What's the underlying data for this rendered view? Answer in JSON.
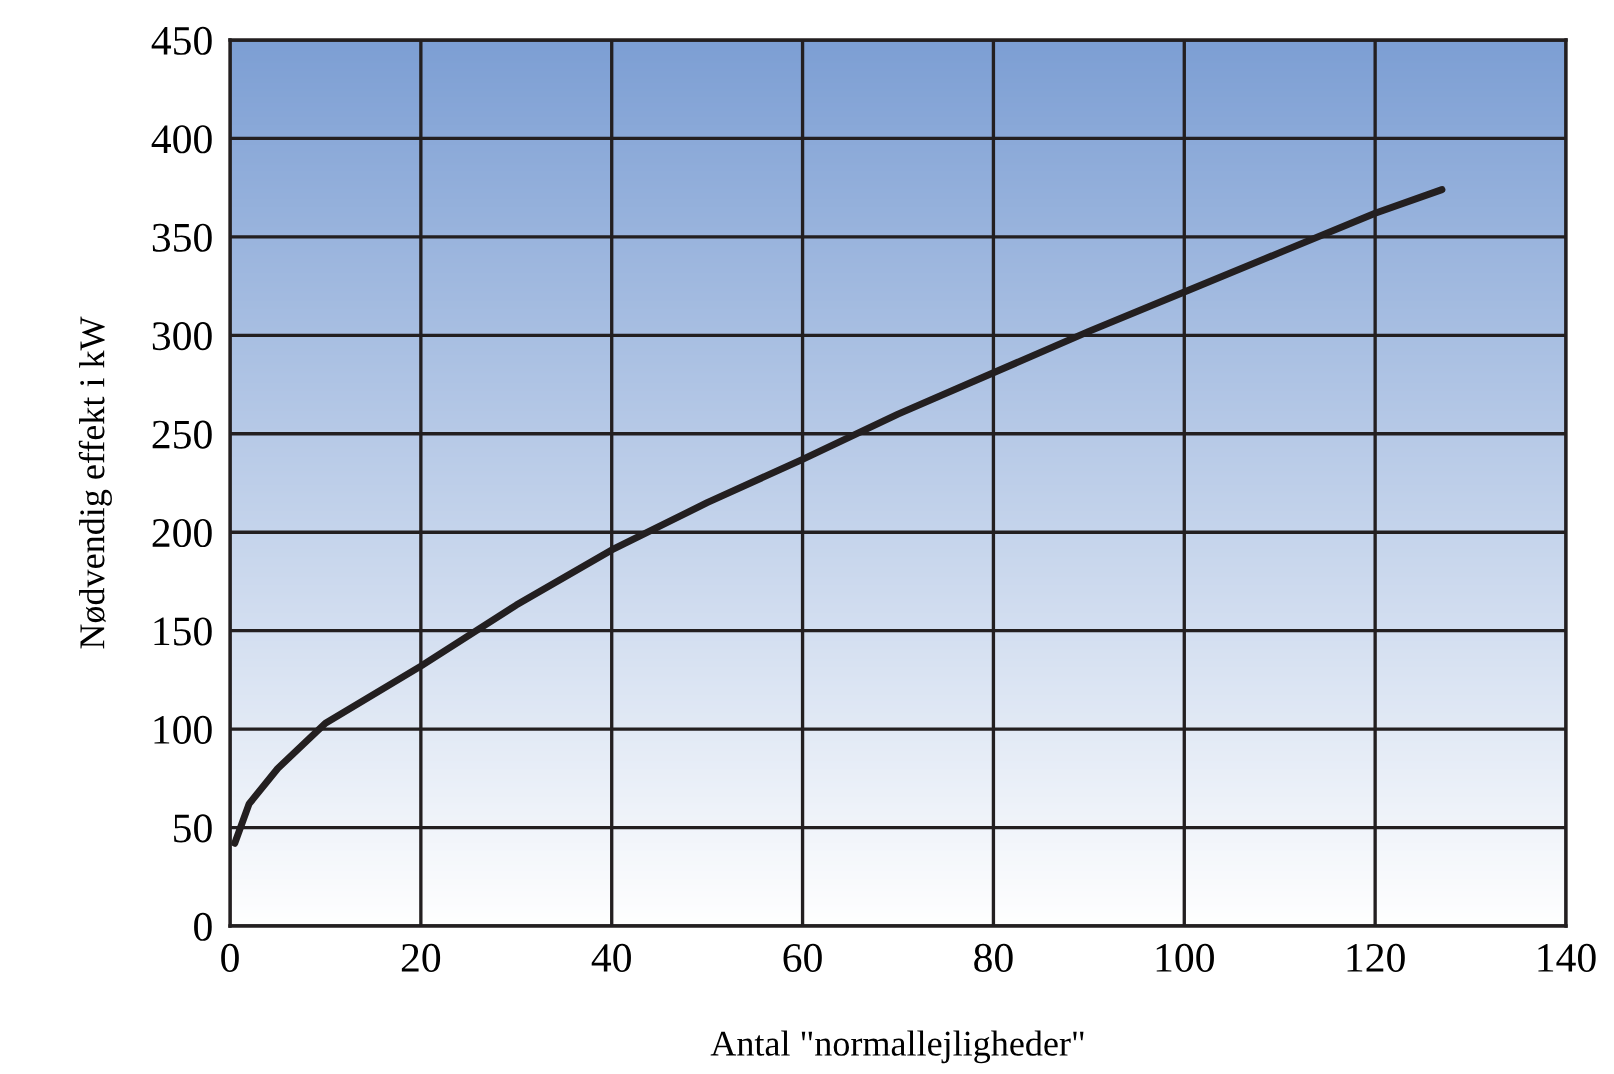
{
  "chart_data": {
    "type": "line",
    "xlabel": "Antal \"normallejligheder\"",
    "ylabel": "Nødvendig effekt i kW",
    "series": [
      {
        "color": "#231f20",
        "x": [
          0.5,
          2,
          5,
          10,
          20,
          30,
          40,
          50,
          60,
          70,
          80,
          90,
          100,
          110,
          120,
          127
        ],
        "values": [
          42,
          62,
          80,
          103,
          132,
          163,
          191,
          215,
          237,
          260,
          281,
          302,
          322,
          342,
          362,
          374
        ]
      }
    ],
    "xlim": [
      0,
      140
    ],
    "ylim": [
      0,
      450
    ],
    "xticks": [
      0,
      20,
      40,
      60,
      80,
      100,
      120,
      140
    ],
    "yticks": [
      0,
      50,
      100,
      150,
      200,
      250,
      300,
      350,
      400,
      450
    ],
    "grid": true,
    "legend": false,
    "marker": "none",
    "line_style": "solid"
  }
}
